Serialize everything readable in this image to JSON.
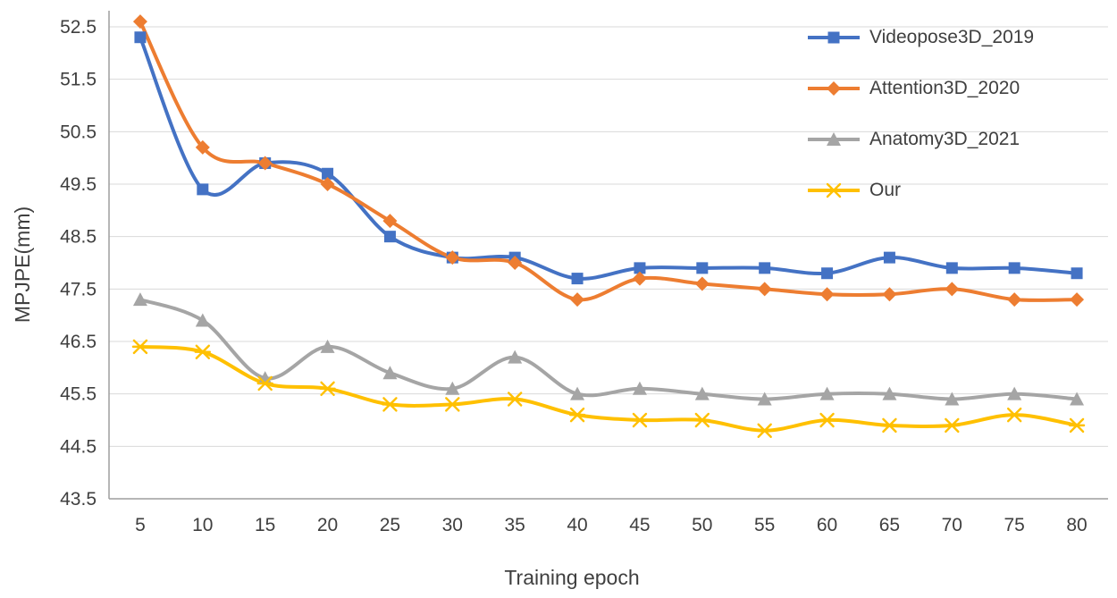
{
  "chart_data": {
    "type": "line",
    "title": "",
    "xlabel": "Training epoch",
    "ylabel": "MPJPE(mm)",
    "x": [
      5,
      10,
      15,
      20,
      25,
      30,
      35,
      40,
      45,
      50,
      55,
      60,
      65,
      70,
      75,
      80
    ],
    "ylim": [
      43.5,
      52.5
    ],
    "yticks": [
      43.5,
      44.5,
      45.5,
      46.5,
      47.5,
      48.5,
      49.5,
      50.5,
      51.5,
      52.5
    ],
    "grid": "horizontal",
    "legend_position": "top-right",
    "line_smoothing": true,
    "series": [
      {
        "name": "Videopose3D_2019",
        "color": "#4472C4",
        "marker": "square",
        "values": [
          52.3,
          49.4,
          49.9,
          49.7,
          48.5,
          48.1,
          48.1,
          47.7,
          47.9,
          47.9,
          47.9,
          47.8,
          48.1,
          47.9,
          47.9,
          47.8
        ]
      },
      {
        "name": "Attention3D_2020",
        "color": "#ED7D31",
        "marker": "diamond",
        "values": [
          52.6,
          50.2,
          49.9,
          49.5,
          48.8,
          48.1,
          48.0,
          47.3,
          47.7,
          47.6,
          47.5,
          47.4,
          47.4,
          47.5,
          47.3,
          47.3
        ]
      },
      {
        "name": "Anatomy3D_2021",
        "color": "#A5A5A5",
        "marker": "triangle",
        "values": [
          47.3,
          46.9,
          45.8,
          46.4,
          45.9,
          45.6,
          46.2,
          45.5,
          45.6,
          45.5,
          45.4,
          45.5,
          45.5,
          45.4,
          45.5,
          45.4
        ]
      },
      {
        "name": "Our",
        "color": "#FFC000",
        "marker": "star",
        "values": [
          46.4,
          46.3,
          45.7,
          45.6,
          45.3,
          45.3,
          45.4,
          45.1,
          45.0,
          45.0,
          44.8,
          45.0,
          44.9,
          44.9,
          45.1,
          44.9
        ]
      }
    ],
    "colors": {
      "axis": "#9e9e9e",
      "grid": "#d9d9d9",
      "tick_text": "#3f3f3f"
    }
  }
}
